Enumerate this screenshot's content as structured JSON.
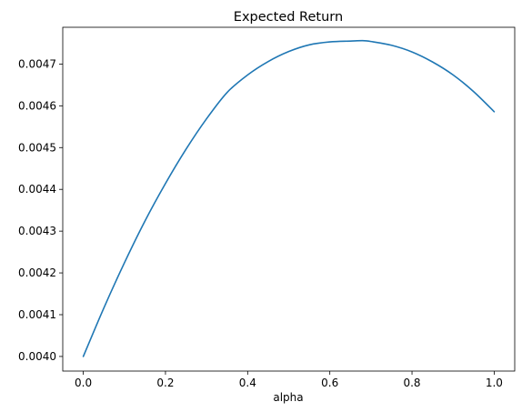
{
  "chart_data": {
    "type": "line",
    "title": "Expected Return",
    "xlabel": "alpha",
    "ylabel": "",
    "xlim": [
      -0.05,
      1.05
    ],
    "ylim": [
      0.003965,
      0.004788
    ],
    "xticks": [
      0.0,
      0.2,
      0.4,
      0.6,
      0.8,
      1.0
    ],
    "xtick_labels": [
      "0.0",
      "0.2",
      "0.4",
      "0.6",
      "0.8",
      "1.0"
    ],
    "yticks": [
      0.004,
      0.0041,
      0.0042,
      0.0043,
      0.0044,
      0.0045,
      0.0046,
      0.0047
    ],
    "ytick_labels": [
      "0.0040",
      "0.0041",
      "0.0042",
      "0.0043",
      "0.0044",
      "0.0045",
      "0.0046",
      "0.0047"
    ],
    "grid": false,
    "line_color": "#1f77b4",
    "series": [
      {
        "x": [
          0.0,
          0.05,
          0.1,
          0.15,
          0.2,
          0.25,
          0.3,
          0.35,
          0.4,
          0.45,
          0.5,
          0.55,
          0.6,
          0.65,
          0.68,
          0.7,
          0.75,
          0.8,
          0.85,
          0.9,
          0.95,
          1.0
        ],
        "values": [
          0.004,
          0.004116,
          0.004224,
          0.004324,
          0.004414,
          0.004496,
          0.004569,
          0.004632,
          0.004674,
          0.004706,
          0.00473,
          0.004746,
          0.004753,
          0.004755,
          0.004756,
          0.004754,
          0.004745,
          0.004729,
          0.004705,
          0.004674,
          0.004634,
          0.004586
        ]
      }
    ]
  }
}
